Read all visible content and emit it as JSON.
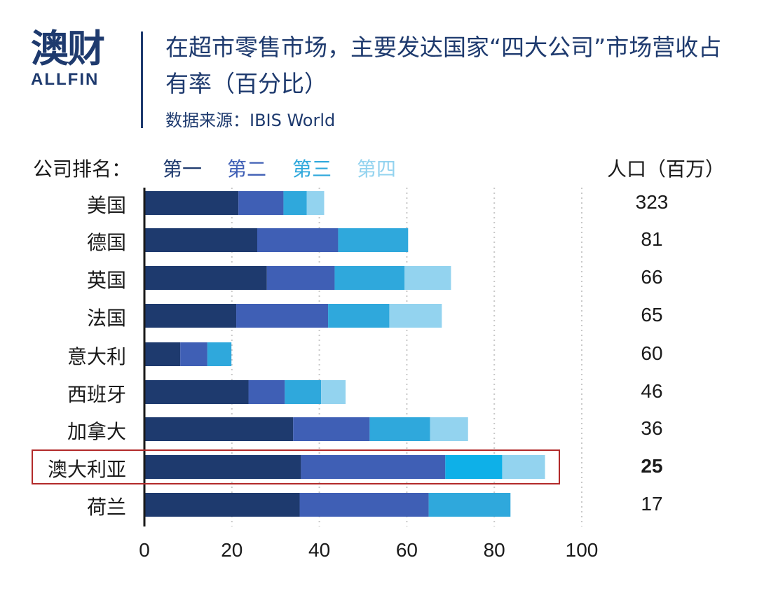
{
  "header": {
    "logo_cn": "澳财",
    "logo_en": "ALLFIN",
    "title": "在超市零售市场，主要发达国家“四大公司”市场营收占有率（百分比）",
    "source": "数据来源：IBIS World"
  },
  "legend": {
    "title": "公司排名：",
    "items": [
      "第一",
      "第二",
      "第三",
      "第四"
    ]
  },
  "population_title": "人口（百万）",
  "colors": {
    "series": [
      "#1e3a6e",
      "#3f5fb5",
      "#2fa8dc",
      "#93d3ef"
    ],
    "highlight_series": [
      "#1e3a6e",
      "#3f5fb5",
      "#0eb0e8",
      "#93d3ef"
    ],
    "highlight_border": "#b22a2a",
    "title_color": "#1e3a6e"
  },
  "chart_data": {
    "type": "bar",
    "orientation": "horizontal",
    "stacked": true,
    "categories": [
      "美国",
      "德国",
      "英国",
      "法国",
      "意大利",
      "西班牙",
      "加拿大",
      "澳大利亚",
      "荷兰"
    ],
    "series": [
      {
        "name": "第一",
        "values": [
          21.5,
          25.8,
          28.0,
          21.0,
          8.2,
          23.8,
          34.0,
          35.8,
          35.5
        ]
      },
      {
        "name": "第二",
        "values": [
          10.3,
          18.5,
          15.5,
          21.0,
          6.2,
          8.3,
          17.5,
          33.0,
          29.5
        ]
      },
      {
        "name": "第三",
        "values": [
          5.3,
          16.0,
          16.0,
          14.0,
          5.5,
          8.3,
          13.8,
          13.0,
          18.7
        ]
      },
      {
        "name": "第四",
        "values": [
          4.0,
          0,
          10.6,
          12.0,
          0,
          5.6,
          8.7,
          9.8,
          0
        ]
      }
    ],
    "population": [
      "323",
      "81",
      "66",
      "65",
      "60",
      "46",
      "36",
      "25",
      "17"
    ],
    "highlight_category": "澳大利亚",
    "xlim": [
      0,
      100
    ],
    "xticks": [
      "0",
      "20",
      "40",
      "60",
      "80",
      "100"
    ],
    "grid": true
  }
}
